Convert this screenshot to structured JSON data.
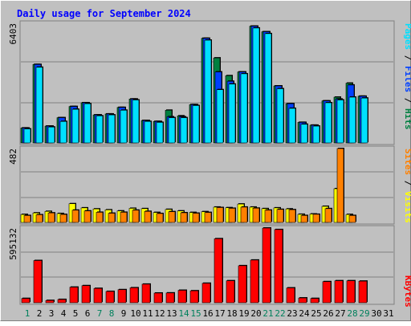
{
  "title": "Daily usage for September 2024",
  "colors": {
    "hits": "#008040",
    "files": "#0040ff",
    "pages": "#00e0ff",
    "visits": "#ffff00",
    "sites": "#ff8000",
    "kbytes": "#ff0000",
    "title": "#0000ff",
    "weekend": "#00805c",
    "panel": "#c0c0c0",
    "grid": "#808080"
  },
  "chart_data": [
    {
      "type": "bar",
      "title": "Daily usage for September 2024",
      "ymax_label": "6403",
      "ylim": [
        0,
        6403
      ],
      "categories": [
        "1",
        "2",
        "3",
        "4",
        "5",
        "6",
        "7",
        "8",
        "9",
        "10",
        "11",
        "12",
        "13",
        "14",
        "15",
        "16",
        "17",
        "18",
        "19",
        "20",
        "21",
        "22",
        "23",
        "24",
        "25",
        "26",
        "27",
        "28",
        "29",
        "30",
        "31"
      ],
      "weekend_days": [
        "1",
        "7",
        "8",
        "14",
        "15",
        "21",
        "22",
        "28",
        "29"
      ],
      "series": [
        {
          "name": "Hits",
          "values": [
            800,
            4200,
            900,
            1350,
            1950,
            2150,
            1500,
            1550,
            1900,
            2350,
            1200,
            1150,
            1750,
            1450,
            2050,
            5600,
            4550,
            3600,
            3800,
            6250,
            5950,
            3050,
            2100,
            1100,
            950,
            2250,
            2450,
            3200,
            2500,
            0,
            0
          ]
        },
        {
          "name": "Files",
          "values": [
            800,
            4200,
            900,
            1350,
            1950,
            2150,
            1500,
            1550,
            1900,
            2350,
            1200,
            1150,
            1400,
            1400,
            2050,
            5600,
            3800,
            3300,
            3800,
            6250,
            5950,
            3050,
            2100,
            1100,
            950,
            2250,
            2350,
            3100,
            2500,
            0,
            0
          ]
        },
        {
          "name": "Pages",
          "values": [
            750,
            4050,
            850,
            1150,
            1800,
            2100,
            1450,
            1500,
            1750,
            2300,
            1150,
            1100,
            1350,
            1350,
            2000,
            5500,
            2850,
            3150,
            3700,
            6150,
            5850,
            2900,
            1850,
            1000,
            900,
            2150,
            2300,
            2450,
            2400,
            0,
            0
          ]
        }
      ],
      "legend": [
        "Hits",
        "Files",
        "Pages"
      ]
    },
    {
      "type": "bar",
      "ymax_label": "482",
      "ylim": [
        0,
        482
      ],
      "categories": [
        "1",
        "2",
        "3",
        "4",
        "5",
        "6",
        "7",
        "8",
        "9",
        "10",
        "11",
        "12",
        "13",
        "14",
        "15",
        "16",
        "17",
        "18",
        "19",
        "20",
        "21",
        "22",
        "23",
        "24",
        "25",
        "26",
        "27",
        "28",
        "29",
        "30",
        "31"
      ],
      "series": [
        {
          "name": "Visits",
          "values": [
            52,
            62,
            72,
            58,
            122,
            95,
            88,
            82,
            75,
            92,
            90,
            65,
            85,
            75,
            65,
            70,
            100,
            96,
            120,
            100,
            90,
            95,
            88,
            53,
            55,
            105,
            220,
            52,
            0,
            0,
            0
          ]
        },
        {
          "name": "Sites",
          "values": [
            45,
            50,
            62,
            52,
            80,
            75,
            66,
            60,
            66,
            80,
            72,
            58,
            70,
            63,
            60,
            65,
            97,
            92,
            100,
            93,
            80,
            85,
            83,
            45,
            53,
            90,
            482,
            45,
            0,
            0,
            0
          ]
        }
      ],
      "legend": [
        "Sites",
        "Visits"
      ]
    },
    {
      "type": "bar",
      "ymax_label": "595132",
      "ylim": [
        0,
        595132
      ],
      "categories": [
        "1",
        "2",
        "3",
        "4",
        "5",
        "6",
        "7",
        "8",
        "9",
        "10",
        "11",
        "12",
        "13",
        "14",
        "15",
        "16",
        "17",
        "18",
        "19",
        "20",
        "21",
        "22",
        "23",
        "24",
        "25",
        "26",
        "27",
        "28",
        "29",
        "30",
        "31"
      ],
      "series": [
        {
          "name": "KBytes",
          "values": [
            34000,
            336000,
            18000,
            26000,
            124000,
            136000,
            114000,
            90000,
            104000,
            119000,
            148000,
            77000,
            78000,
            99000,
            95000,
            155000,
            510000,
            175000,
            295000,
            340000,
            595132,
            583000,
            118000,
            38000,
            34000,
            168000,
            175000,
            175000,
            172000,
            0,
            0
          ]
        }
      ],
      "legend": [
        "KBytes"
      ]
    }
  ]
}
